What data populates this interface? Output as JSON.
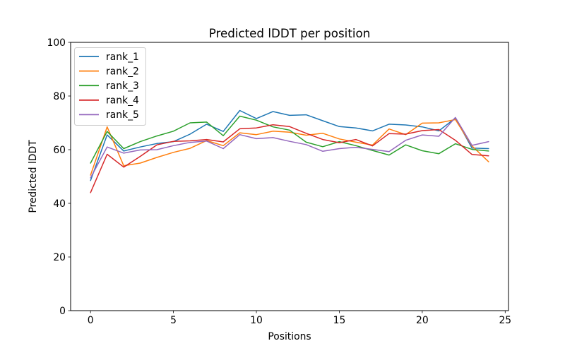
{
  "chart_data": {
    "type": "line",
    "title": "Predicted lDDT per position",
    "xlabel": "Positions",
    "ylabel": "Predicted lDDT",
    "xlim": [
      -1.2,
      25.2
    ],
    "ylim": [
      0,
      100
    ],
    "xticks": [
      0,
      5,
      10,
      15,
      20,
      25
    ],
    "yticks": [
      0,
      20,
      40,
      60,
      80,
      100
    ],
    "grid": false,
    "legend_position": "upper left",
    "x": [
      0,
      1,
      2,
      3,
      4,
      5,
      6,
      7,
      8,
      9,
      10,
      11,
      12,
      13,
      14,
      15,
      16,
      17,
      18,
      19,
      20,
      21,
      22,
      23,
      24
    ],
    "series": [
      {
        "name": "rank_1",
        "color": "#1f77b4",
        "values": [
          48.5,
          65.5,
          59.5,
          61.0,
          62.3,
          63.0,
          65.8,
          69.5,
          66.8,
          74.6,
          71.6,
          74.2,
          72.8,
          73.0,
          70.8,
          68.6,
          68.1,
          67.0,
          69.5,
          69.2,
          68.5,
          67.0,
          71.8,
          60.6,
          60.4
        ]
      },
      {
        "name": "rank_2",
        "color": "#ff7f0e",
        "values": [
          50.5,
          68.5,
          54.0,
          55.0,
          57.1,
          59.0,
          60.5,
          63.4,
          61.5,
          66.3,
          65.6,
          66.9,
          66.5,
          65.4,
          66.1,
          64.0,
          62.8,
          61.7,
          67.7,
          65.6,
          69.9,
          70.0,
          71.2,
          61.4,
          55.5
        ]
      },
      {
        "name": "rank_3",
        "color": "#2ca02c",
        "values": [
          55.0,
          66.8,
          60.4,
          63.0,
          65.1,
          66.9,
          70.0,
          70.3,
          65.2,
          72.5,
          71.0,
          68.5,
          67.3,
          62.8,
          61.1,
          63.0,
          61.5,
          59.7,
          58.0,
          61.8,
          59.6,
          58.5,
          62.2,
          60.1,
          59.5
        ]
      },
      {
        "name": "rank_4",
        "color": "#d62728",
        "values": [
          44.0,
          58.3,
          53.5,
          57.5,
          61.8,
          63.1,
          63.3,
          63.8,
          62.9,
          67.8,
          68.1,
          69.3,
          68.6,
          66.1,
          63.8,
          62.6,
          63.8,
          61.4,
          66.0,
          65.8,
          67.1,
          67.5,
          63.5,
          58.2,
          57.7
        ]
      },
      {
        "name": "rank_5",
        "color": "#9467bd",
        "values": [
          49.5,
          61.0,
          58.7,
          59.9,
          60.0,
          61.5,
          62.7,
          63.2,
          60.4,
          65.6,
          64.1,
          64.5,
          63.1,
          61.9,
          59.4,
          60.4,
          60.9,
          60.1,
          59.3,
          63.5,
          65.5,
          65.0,
          72.0,
          61.6,
          63.0
        ]
      }
    ],
    "axis_color": "#000000",
    "legend_border_color": "#cccccc"
  }
}
